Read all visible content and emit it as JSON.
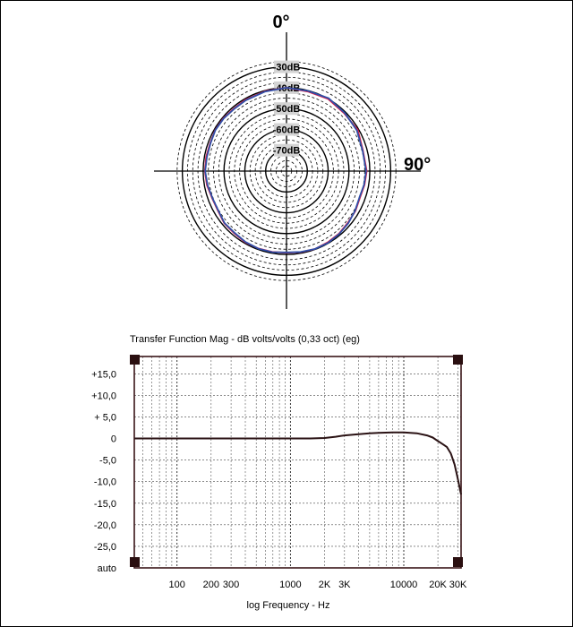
{
  "chart_data": [
    {
      "type": "polar",
      "angle_labels": {
        "top": "0°",
        "right": "90°"
      },
      "ring_labels": [
        "-30dB",
        "-40dB",
        "-50dB",
        "-60dB",
        "-70dB"
      ],
      "r_range_db": [
        -80,
        -25
      ],
      "series": [
        {
          "color": "#d81e4a",
          "angles_deg": [
            0,
            15,
            30,
            45,
            60,
            75,
            90,
            100,
            110,
            120,
            130,
            140,
            150,
            160,
            170,
            180,
            190,
            200,
            210,
            220,
            230,
            240,
            250,
            260,
            270,
            280,
            290,
            300,
            310,
            320,
            330,
            345
          ],
          "values_db": [
            -40,
            -40.5,
            -40,
            -40.8,
            -40.5,
            -42,
            -41.5,
            -42,
            -42.5,
            -41.8,
            -41.5,
            -40.8,
            -40.5,
            -40.2,
            -40.5,
            -40.8,
            -40.6,
            -40.5,
            -40.5,
            -41,
            -41,
            -42,
            -42,
            -41.2,
            -40.8,
            -40.8,
            -41,
            -40.5,
            -40.5,
            -40.8,
            -40.5,
            -40.3
          ]
        },
        {
          "color": "#2f4fa8",
          "angles_deg": [
            0,
            15,
            30,
            45,
            60,
            75,
            90,
            100,
            110,
            120,
            130,
            140,
            150,
            160,
            170,
            180,
            190,
            200,
            210,
            220,
            230,
            240,
            250,
            260,
            270,
            280,
            290,
            300,
            310,
            320,
            330,
            345
          ],
          "values_db": [
            -40,
            -40.2,
            -39.6,
            -40.5,
            -41,
            -42.2,
            -41.8,
            -42.2,
            -42.8,
            -42,
            -41.2,
            -40.6,
            -40.2,
            -40.2,
            -40.6,
            -41,
            -40.5,
            -40.4,
            -40.7,
            -41.3,
            -41.2,
            -42.2,
            -42.2,
            -41.5,
            -41,
            -41.2,
            -41.2,
            -40.6,
            -40.7,
            -41,
            -40.8,
            -40.5
          ]
        }
      ]
    },
    {
      "type": "line",
      "title": "Transfer Function Mag - dB volts/volts (0,33 oct) (eg)",
      "xlabel": "log Frequency - Hz",
      "xscale": "log",
      "xlim": [
        42,
        32000
      ],
      "x_tick_values": [
        100,
        200,
        300,
        1000,
        2000,
        3000,
        10000,
        20000,
        30000
      ],
      "x_tick_labels": [
        "100",
        "200",
        "300",
        "1000",
        "2K",
        "3K",
        "10000",
        "20K",
        "30K"
      ],
      "y_tick_values": [
        15,
        10,
        5,
        0,
        -5,
        -10,
        -15,
        -20,
        -25,
        -30
      ],
      "y_tick_labels": [
        "+15,0",
        "+10,0",
        "+ 5,0",
        "0",
        "-5,0",
        "-10,0",
        "-15,0",
        "-20,0",
        "-25,0",
        "auto"
      ],
      "ylim": [
        -30,
        19
      ],
      "grid": true,
      "series": [
        {
          "color": "#2a1214",
          "x": [
            42,
            100,
            200,
            500,
            1000,
            1500,
            2000,
            2500,
            3000,
            4000,
            5000,
            6000,
            8000,
            10000,
            13000,
            16000,
            18000,
            20000,
            22000,
            24000,
            26000,
            28000,
            30000,
            32000
          ],
          "y": [
            0,
            0,
            0,
            0,
            0,
            0,
            0.1,
            0.4,
            0.7,
            1.0,
            1.2,
            1.3,
            1.4,
            1.4,
            1.2,
            0.7,
            0.2,
            -0.6,
            -1.3,
            -2.0,
            -3.5,
            -6.0,
            -9.5,
            -13.0
          ]
        }
      ]
    }
  ]
}
